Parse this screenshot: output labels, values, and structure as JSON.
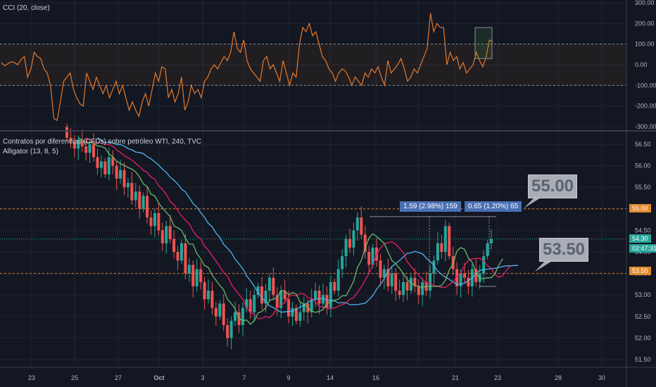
{
  "cci_panel": {
    "title": "CCI (20, close)",
    "y_ticks": [
      "300.00",
      "200.00",
      "100.00",
      "0.00",
      "-100.00",
      "-200.00",
      "-300.00"
    ],
    "y_values": [
      300,
      200,
      100,
      0,
      -100,
      -200,
      -300
    ],
    "series": [
      10,
      -5,
      5,
      15,
      10,
      0,
      25,
      40,
      -60,
      -20,
      60,
      40,
      30,
      -20,
      -40,
      -100,
      -260,
      -270,
      -180,
      -80,
      -60,
      -40,
      -120,
      -160,
      -190,
      -200,
      -40,
      -80,
      -120,
      -60,
      -100,
      -140,
      -100,
      -160,
      -120,
      -80,
      -140,
      -100,
      -160,
      -220,
      -180,
      -220,
      -250,
      -180,
      -140,
      -200,
      -120,
      -40,
      -80,
      -10,
      -20,
      -160,
      -120,
      -180,
      -140,
      -60,
      -220,
      -180,
      -100,
      -140,
      -120,
      -160,
      -80,
      -60,
      -20,
      0,
      -20,
      10,
      40,
      20,
      60,
      160,
      80,
      60,
      120,
      20,
      -20,
      -40,
      -60,
      -80,
      20,
      40,
      -20,
      0,
      -40,
      -80,
      20,
      -40,
      -100,
      -40,
      -60,
      100,
      180,
      160,
      200,
      140,
      160,
      100,
      40,
      20,
      -20,
      -40,
      -80,
      -40,
      -20,
      -30,
      -60,
      -100,
      -60,
      -80,
      -100,
      -40,
      -60,
      -20,
      -40,
      -10,
      -60,
      -100,
      20,
      -40,
      -20,
      0,
      30,
      -20,
      -80,
      -60,
      -20,
      -40,
      0,
      40,
      80,
      250,
      160,
      200,
      180,
      180,
      0,
      60,
      20,
      40,
      -20,
      10,
      -40,
      -20,
      0,
      60,
      20,
      -10,
      40,
      120,
      110
    ]
  },
  "main_panel": {
    "title": "Contratos por diferencias (CFDs) sobre petróleo WTI, 240, TVC",
    "subtitle": "Alligator (13, 8, 5)",
    "y_ticks": [
      "56.50",
      "56.00",
      "55.50",
      "55.00",
      "54.50",
      "54.00",
      "53.50",
      "53.00",
      "52.50",
      "52.00",
      "51.50"
    ],
    "y_values": [
      56.5,
      56.0,
      55.5,
      55.0,
      54.5,
      54.0,
      53.5,
      53.0,
      52.5,
      52.0,
      51.5
    ],
    "price_tag": "54.30",
    "price_value": 54.3,
    "timer_tag": "02:47:31",
    "level_55_tag": "55.00",
    "level_535_tag": "53.50",
    "callout_55": "55.00",
    "callout_535": "53.50",
    "measure_left": "1.59 (2.98%) 159",
    "measure_right": "0.65 (1.20%) 65"
  },
  "x_axis": {
    "labels": [
      "23",
      "25",
      "27",
      "Oct",
      "3",
      "7",
      "9",
      "14",
      "16",
      "21",
      "23",
      "28",
      "30"
    ]
  },
  "colors": {
    "background": "#131722",
    "bull": "#26a69a",
    "bear": "#ef5350",
    "cci_line": "#e4792a",
    "jaw": "#4fb3f0",
    "teeth": "#e91e63",
    "lips": "#66bb6a",
    "level_line": "#e57c28",
    "price_tag": "#26a69a",
    "level_tag": "#e08a2e"
  },
  "chart_data": [
    {
      "type": "line",
      "title": "CCI (20, close)",
      "ylim": [
        -300,
        300
      ],
      "bands": [
        100,
        -100
      ]
    },
    {
      "type": "candlestick",
      "title": "Contratos por diferencias (CFDs) sobre petróleo WTI, 240, TVC",
      "ylim": [
        51.3,
        56.7
      ],
      "x_ticks": [
        "23",
        "25",
        "27",
        "Oct",
        "3",
        "7",
        "9",
        "14",
        "16",
        "21",
        "23",
        "28",
        "30"
      ],
      "levels": [
        55.0,
        53.5
      ],
      "current_price": 54.3,
      "closes": [
        56.65,
        56.55,
        56.4,
        56.6,
        56.45,
        56.3,
        56.5,
        56.2,
        55.95,
        56.1,
        55.8,
        56.2,
        56.0,
        55.7,
        55.9,
        55.5,
        55.6,
        55.2,
        55.4,
        55.0,
        55.3,
        54.8,
        54.6,
        54.9,
        54.5,
        54.2,
        54.6,
        54.3,
        54.0,
        53.8,
        54.2,
        53.5,
        53.7,
        53.2,
        53.6,
        53.3,
        52.9,
        53.1,
        52.7,
        52.5,
        52.8,
        52.3,
        52.0,
        52.4,
        52.6,
        52.3,
        52.7,
        52.9,
        52.6,
        53.0,
        53.2,
        52.8,
        53.1,
        53.4,
        53.0,
        52.7,
        53.1,
        52.9,
        52.5,
        52.7,
        52.4,
        52.6,
        52.8,
        52.6,
        52.9,
        53.1,
        52.8,
        53.0,
        52.7,
        53.3,
        53.1,
        53.6,
        53.9,
        54.3,
        54.1,
        54.5,
        54.8,
        54.4,
        54.0,
        53.7,
        54.1,
        53.8,
        53.4,
        53.6,
        53.2,
        53.5,
        53.1,
        53.0,
        53.3,
        53.1,
        53.4,
        53.2,
        53.0,
        53.3,
        53.1,
        53.5,
        53.8,
        54.2,
        54.0,
        54.6,
        53.9,
        53.6,
        53.2,
        53.5,
        53.4,
        53.2,
        53.6,
        53.3,
        53.5,
        53.9,
        54.2,
        54.3
      ]
    }
  ]
}
